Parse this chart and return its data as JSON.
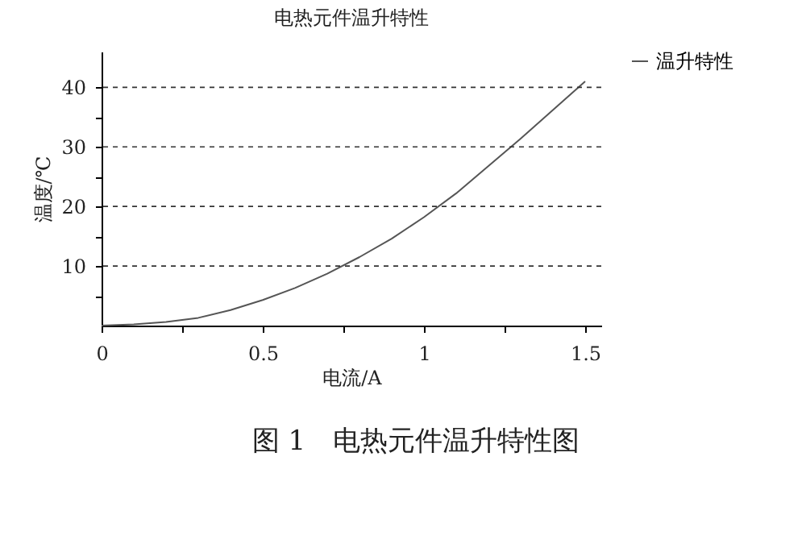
{
  "chart_data": {
    "type": "line",
    "title": "电热元件温升特性",
    "xlabel": "电流/A",
    "ylabel": "温度/℃",
    "x": [
      0,
      0.1,
      0.2,
      0.3,
      0.4,
      0.5,
      0.6,
      0.7,
      0.8,
      0.9,
      1.0,
      1.1,
      1.2,
      1.3,
      1.4,
      1.5
    ],
    "series": [
      {
        "name": "温升特性",
        "color": "#555555",
        "values": [
          0,
          0.2,
          0.6,
          1.3,
          2.6,
          4.3,
          6.3,
          8.7,
          11.5,
          14.6,
          18.2,
          22.2,
          26.8,
          31.4,
          36.2,
          41
        ]
      }
    ],
    "xlim": [
      0,
      1.55
    ],
    "ylim": [
      0,
      46
    ],
    "xticks": [
      0,
      {
        "value": 0.25,
        "label": null
      },
      0.5,
      {
        "value": 0.75,
        "label": null
      },
      1,
      {
        "value": 1.25,
        "label": null
      },
      1.5
    ],
    "yticks": [
      {
        "value": 5,
        "label": null
      },
      10,
      {
        "value": 15,
        "label": null
      },
      20,
      {
        "value": 25,
        "label": null
      },
      30,
      {
        "value": 35,
        "label": null
      },
      40
    ],
    "grid": "y",
    "legend": "right",
    "marker": "none",
    "line_style": "solid",
    "annotations": [
      "图 1　电热元件温升特性图"
    ]
  }
}
